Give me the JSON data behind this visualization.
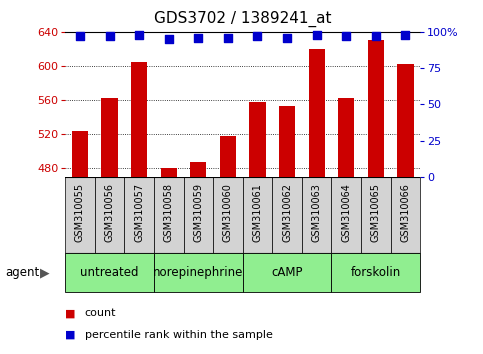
{
  "title": "GDS3702 / 1389241_at",
  "samples": [
    "GSM310055",
    "GSM310056",
    "GSM310057",
    "GSM310058",
    "GSM310059",
    "GSM310060",
    "GSM310061",
    "GSM310062",
    "GSM310063",
    "GSM310064",
    "GSM310065",
    "GSM310066"
  ],
  "counts": [
    524,
    563,
    605,
    480,
    488,
    518,
    558,
    553,
    620,
    563,
    630,
    602
  ],
  "percentile_ranks": [
    97,
    97,
    98,
    95,
    96,
    96,
    97,
    96,
    98,
    97,
    97,
    98
  ],
  "ylim_left": [
    470,
    640
  ],
  "ylim_right": [
    0,
    100
  ],
  "yticks_left": [
    480,
    520,
    560,
    600,
    640
  ],
  "yticks_right": [
    0,
    25,
    50,
    75,
    100
  ],
  "bar_color": "#cc0000",
  "dot_color": "#0000cc",
  "bar_width": 0.55,
  "agent_groups": [
    {
      "label": "untreated",
      "start": 0,
      "end": 3
    },
    {
      "label": "norepinephrine",
      "start": 3,
      "end": 6
    },
    {
      "label": "cAMP",
      "start": 6,
      "end": 9
    },
    {
      "label": "forskolin",
      "start": 9,
      "end": 12
    }
  ],
  "agent_bg_color": "#90ee90",
  "sample_bg_color": "#d3d3d3",
  "grid_color": "black",
  "grid_linestyle": ":",
  "legend_count_color": "#cc0000",
  "legend_pct_color": "#0000cc",
  "title_fontsize": 11,
  "tick_fontsize": 8,
  "dot_size": 35
}
